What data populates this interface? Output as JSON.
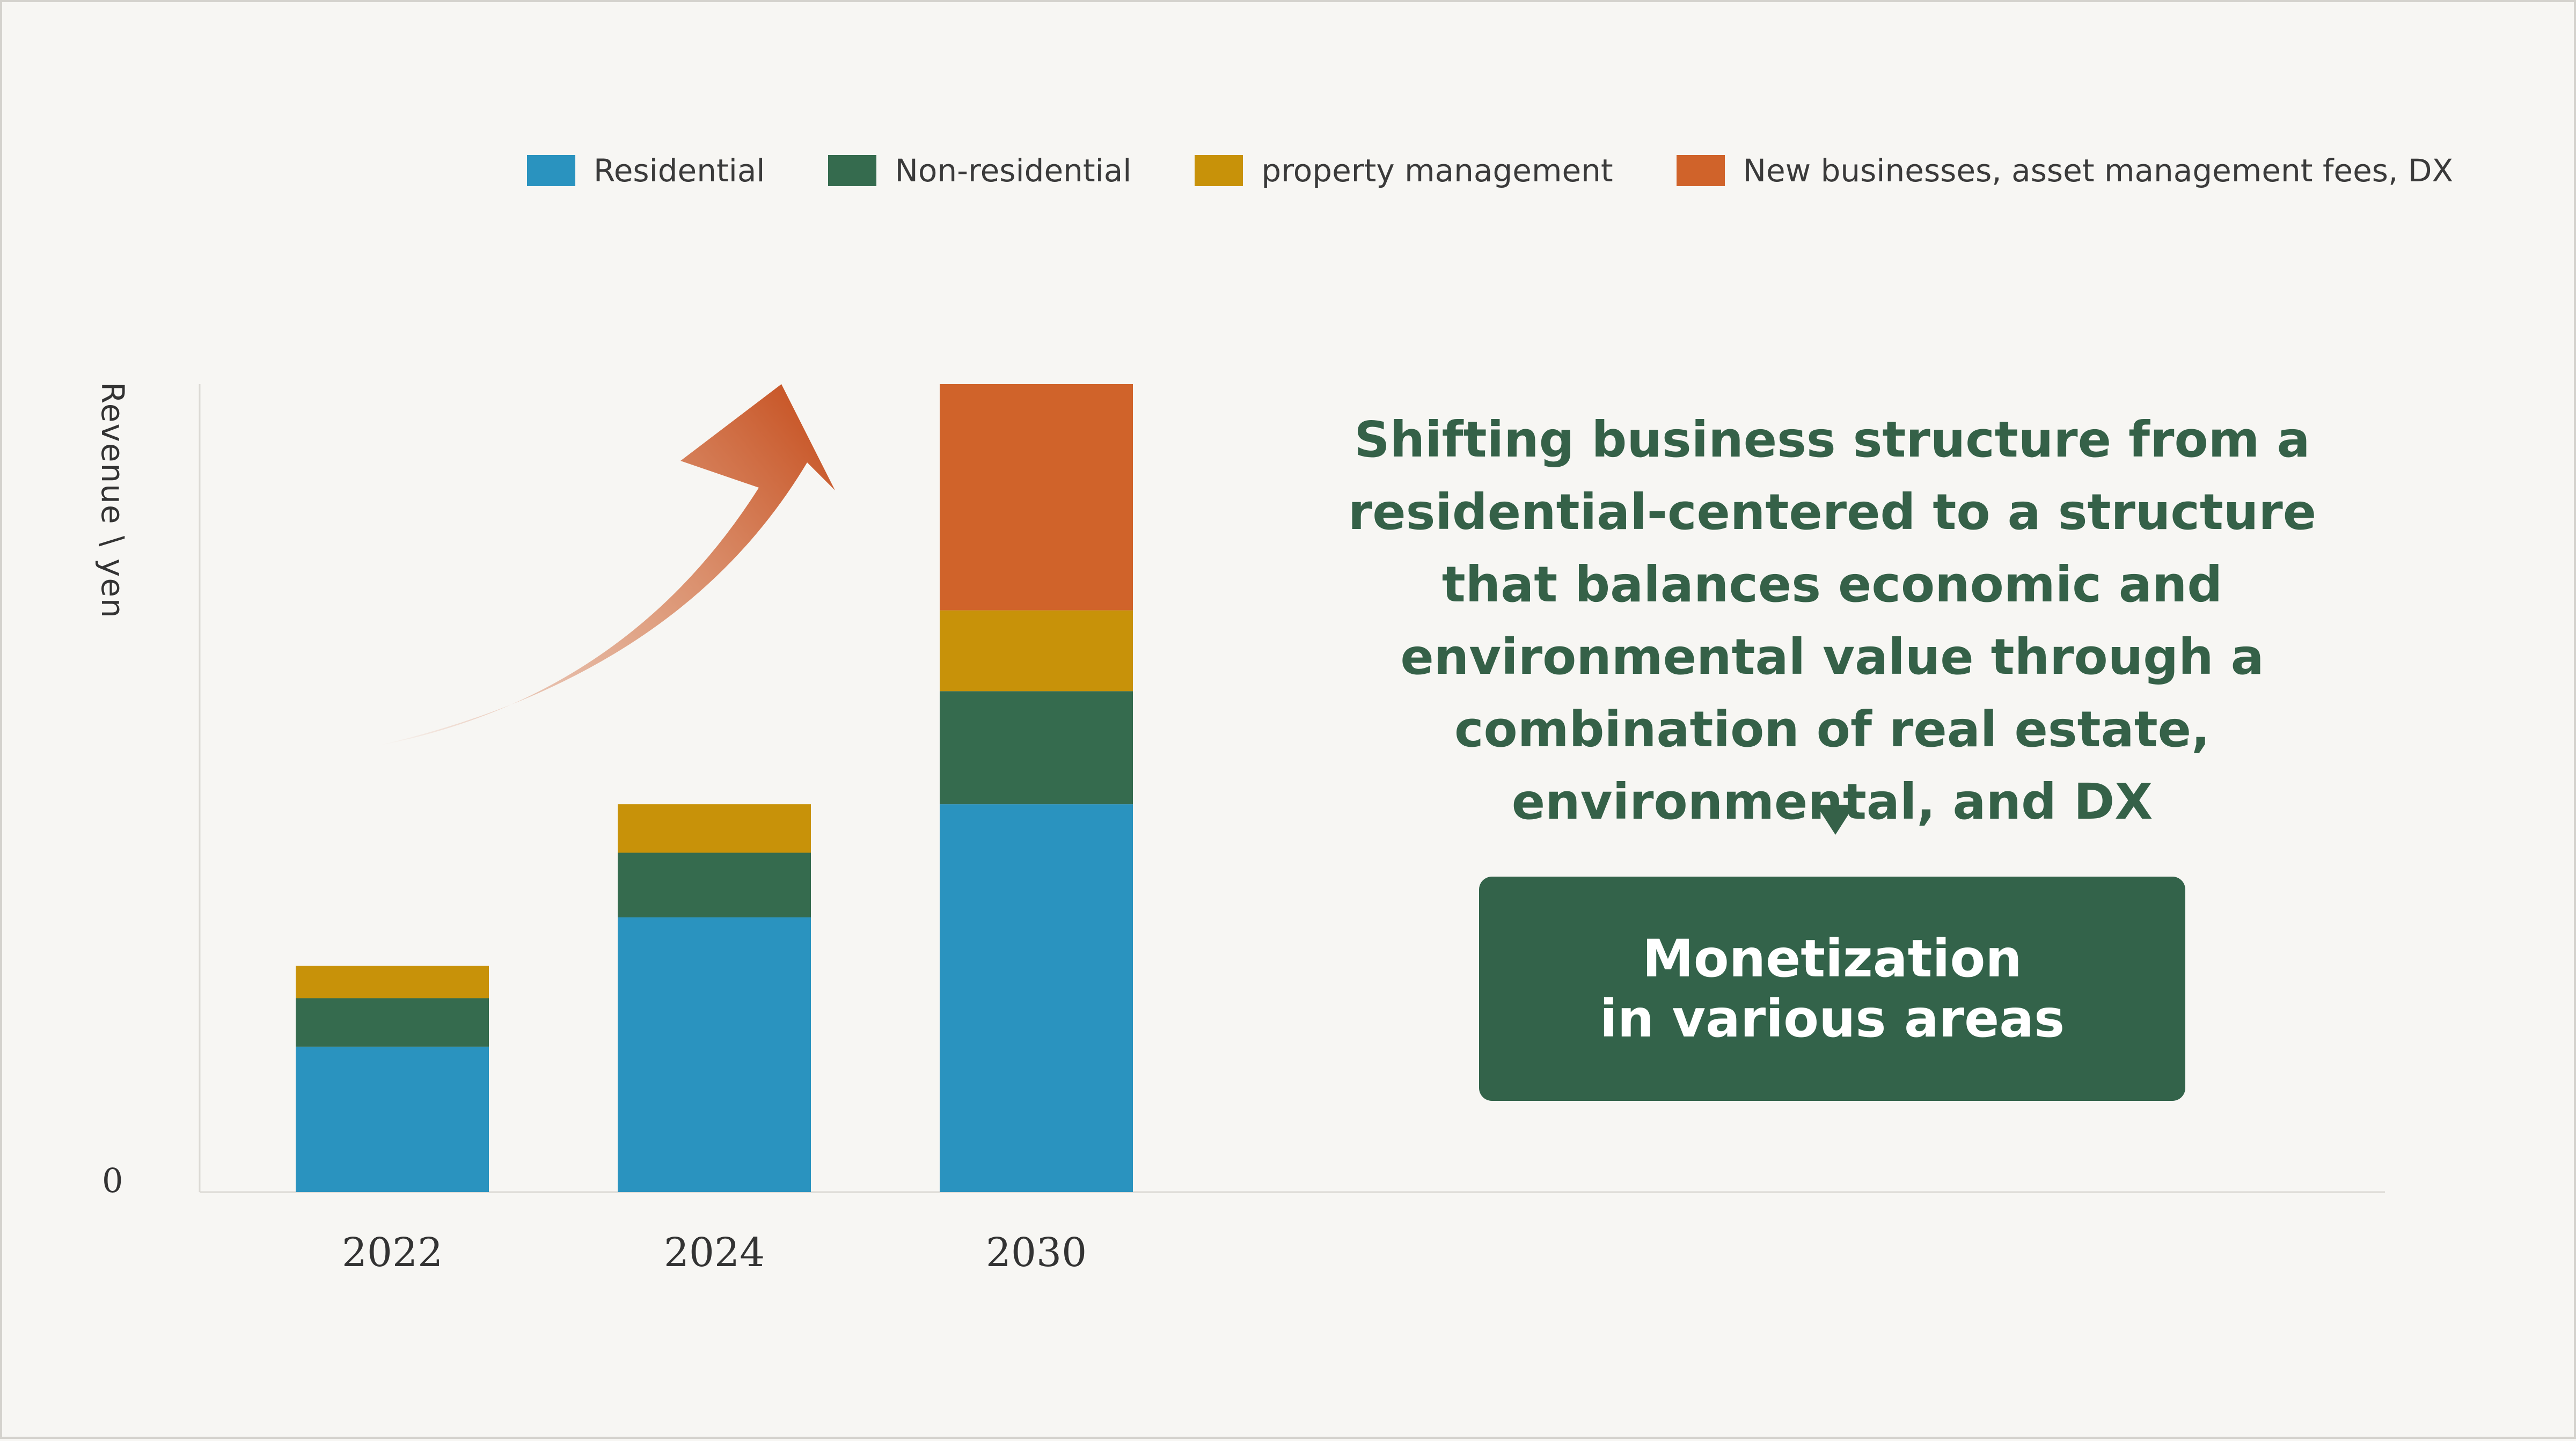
{
  "chart_data": {
    "type": "bar",
    "stacked": true,
    "categories": [
      "2022",
      "2024",
      "2030"
    ],
    "series": [
      {
        "name": "Residential",
        "color": "#2a93bf",
        "values": [
          18,
          34,
          48
        ]
      },
      {
        "name": "Non-residential",
        "color": "#356b4e",
        "values": [
          6,
          8,
          14
        ]
      },
      {
        "name": "property management",
        "color": "#c89209",
        "values": [
          4,
          6,
          10
        ]
      },
      {
        "name": "New businesses, asset management fees, DX",
        "color": "#d0632a",
        "values": [
          0,
          0,
          28
        ]
      }
    ],
    "ylabel": "Revenue \\ yen",
    "ytick_labels": [
      "0"
    ],
    "ylim": [
      0,
      100
    ],
    "legend_position": "top-right",
    "trend_arrow_color": "#c9592b"
  },
  "annotation": {
    "headline": "Shifting business structure from a residential-centered to a structure that balances economic and environmental value through a combination of real estate, environmental, and DX",
    "callout_line1": "Monetization",
    "callout_line2": "in various areas",
    "accent_color": "#33634a"
  }
}
